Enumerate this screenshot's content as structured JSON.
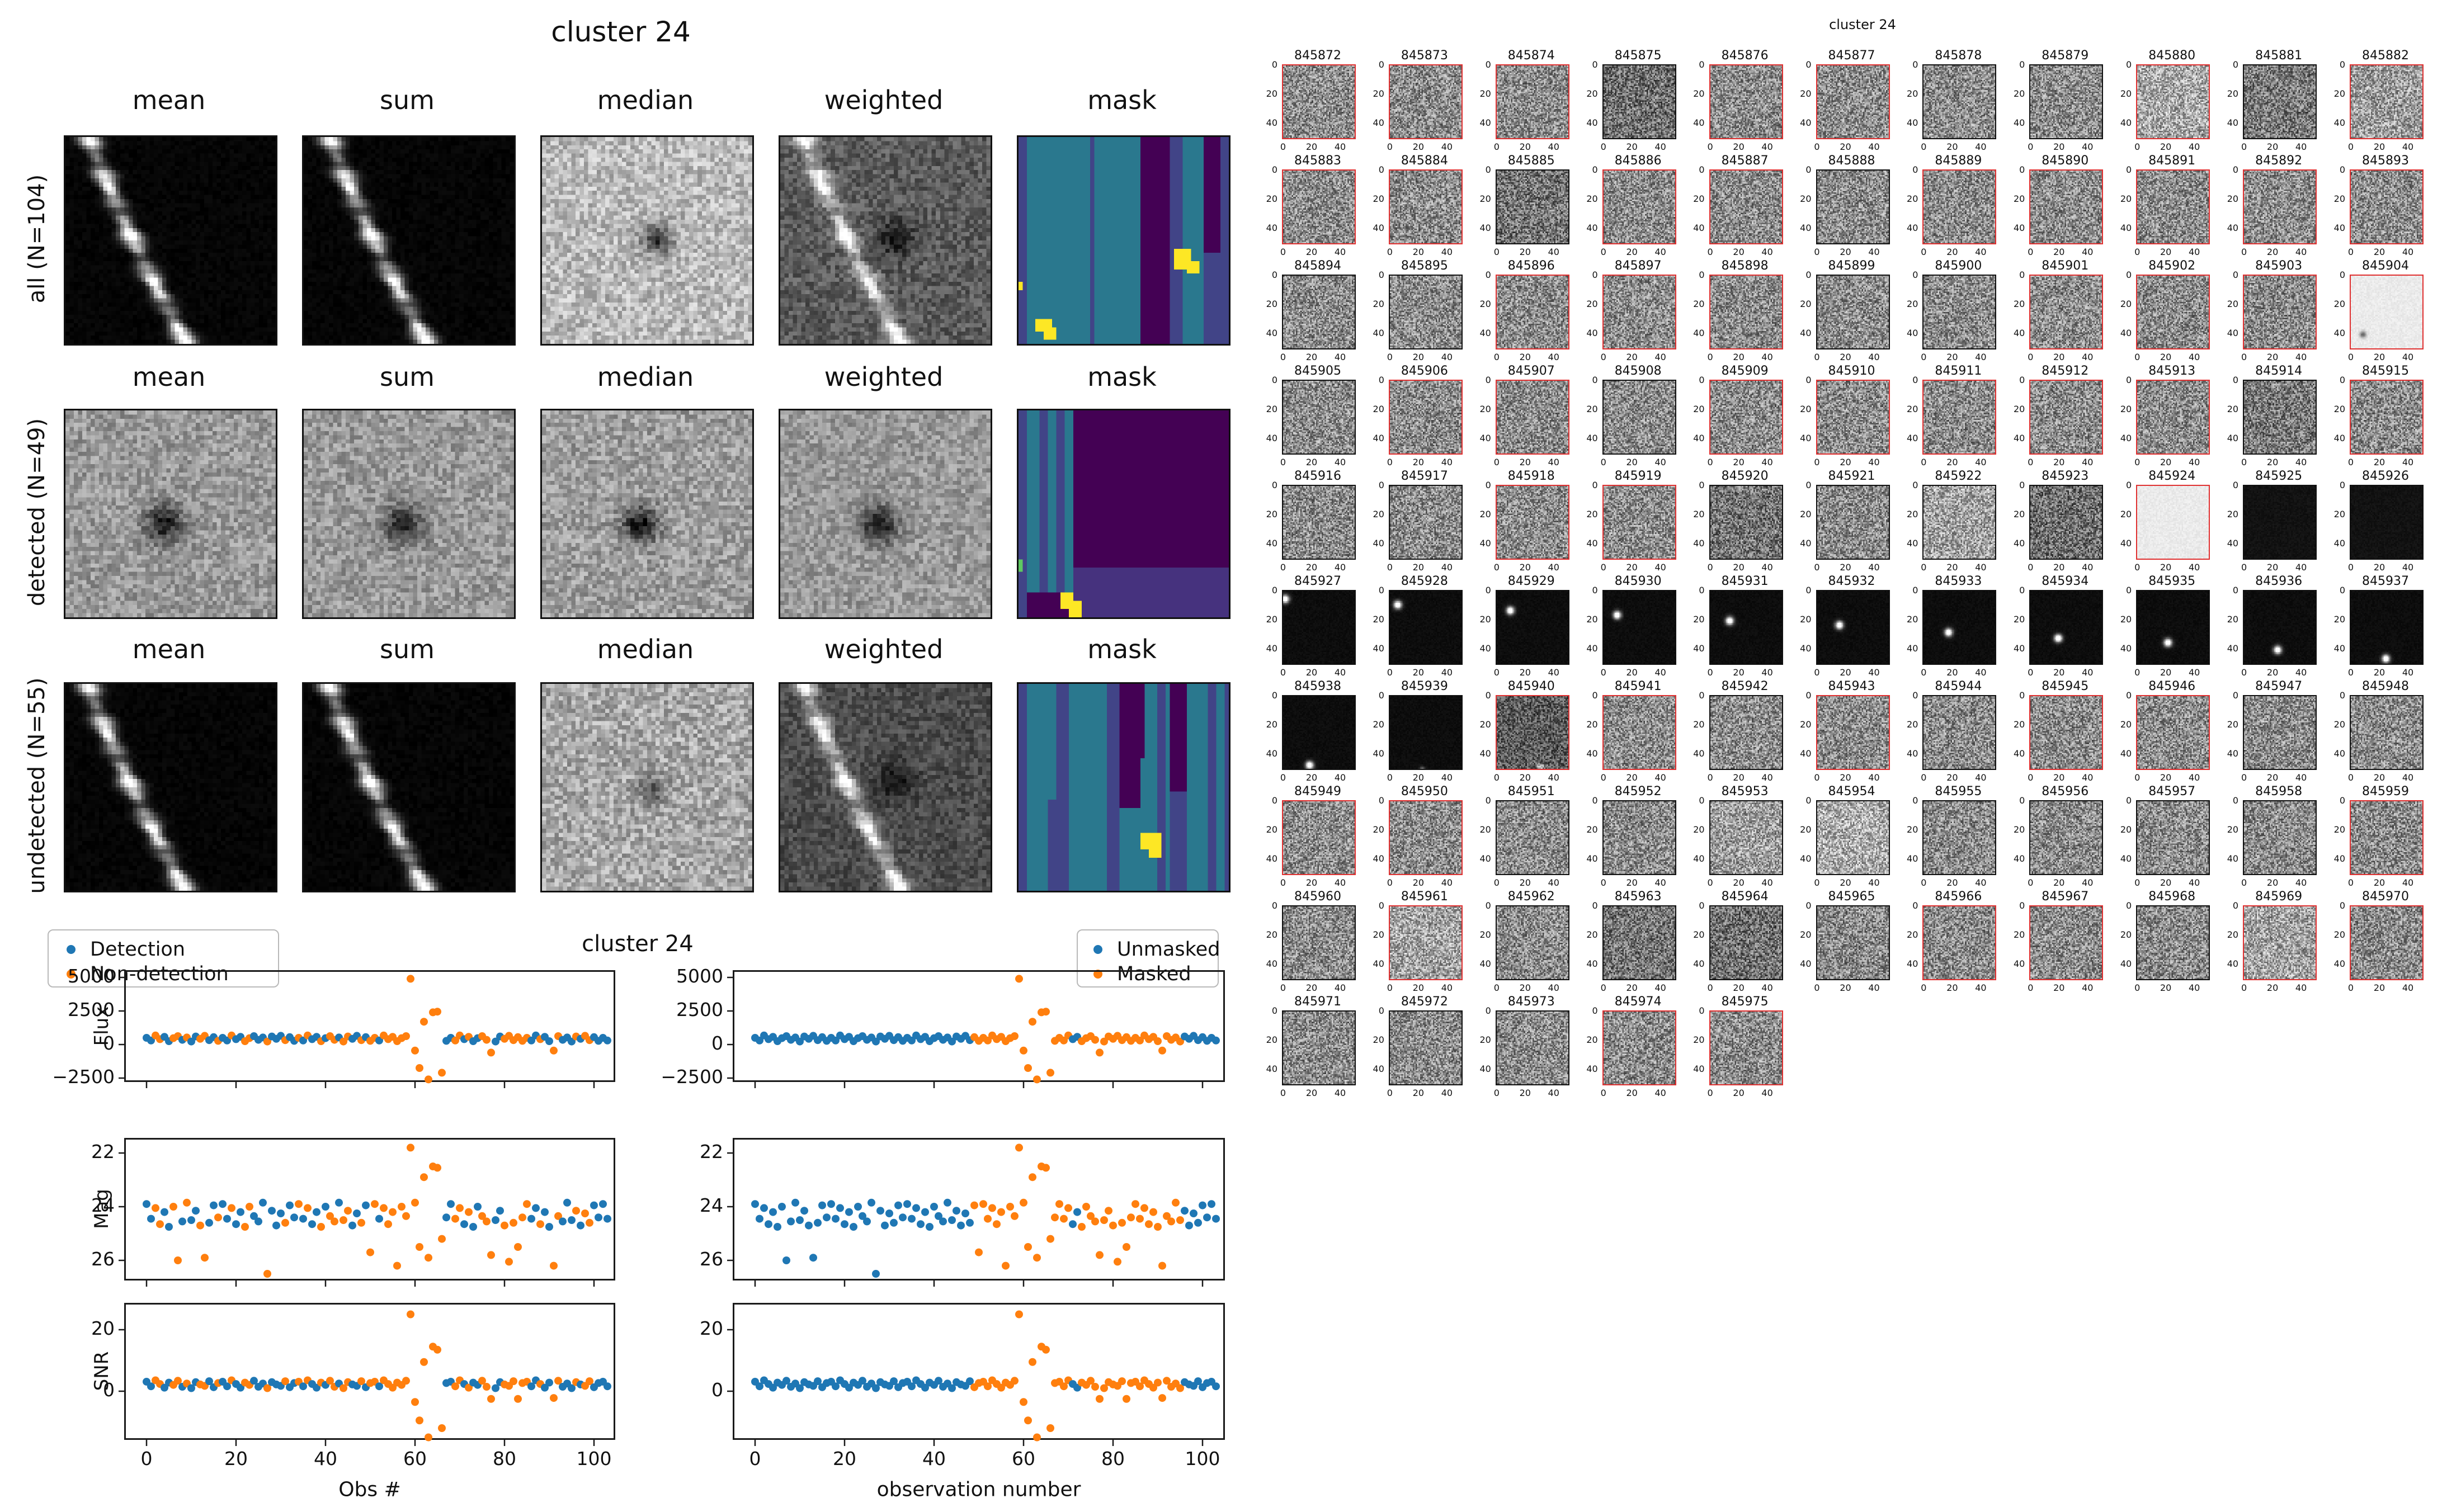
{
  "colors": {
    "point_blue": "#1f77b4",
    "point_orange": "#ff7f0e",
    "red_border": "#e03131",
    "black_border": "#111111",
    "viridis_teal": "#2a788e",
    "viridis_blue": "#414487",
    "viridis_dark_purple": "#440154",
    "viridis_light_purple": "#46327e",
    "viridis_green": "#5ec962",
    "viridis_yellow": "#fde725"
  },
  "left_figure": {
    "title": "cluster 24",
    "col_headers": [
      "mean",
      "sum",
      "median",
      "weighted",
      "mask"
    ],
    "rows": [
      {
        "label": "all (N=104)",
        "panels": [
          "streak_all_mean",
          "streak_all_sum",
          "median_all",
          "weighted_all",
          "mask_all"
        ]
      },
      {
        "label": "detected (N=49)",
        "panels": [
          "det_mean",
          "det_sum",
          "det_median",
          "det_weighted",
          "mask_detected"
        ]
      },
      {
        "label": "undetected (N=55)",
        "panels": [
          "streak_und_mean",
          "streak_und_sum",
          "und_median",
          "und_weighted",
          "mask_undetected"
        ]
      }
    ]
  },
  "scatter_figure": {
    "title": "cluster 24",
    "legend_left": {
      "items": [
        {
          "label": "Detection",
          "color": "point_blue"
        },
        {
          "label": "Non-detection",
          "color": "point_orange"
        }
      ]
    },
    "legend_right": {
      "items": [
        {
          "label": "Unmasked",
          "color": "point_blue"
        },
        {
          "label": "Masked",
          "color": "point_orange"
        }
      ]
    },
    "ylabels": [
      "Flux",
      "Mag",
      "SNR"
    ],
    "xlabel_left": "Obs #",
    "xlabel_right": "observation number",
    "yticks": {
      "flux": {
        "values": [
          5000,
          2500,
          0,
          -2500
        ],
        "labels": [
          "5000",
          "2500",
          "0",
          "−2500"
        ]
      },
      "mag": {
        "values": [
          22,
          24,
          26
        ],
        "labels": [
          "22",
          "24",
          "26"
        ]
      },
      "snr": {
        "values": [
          20,
          0
        ],
        "labels": [
          "20",
          "0"
        ]
      }
    },
    "xticks": {
      "values": [
        0,
        20,
        40,
        60,
        80,
        100
      ],
      "labels": [
        "0",
        "20",
        "40",
        "60",
        "80",
        "100"
      ]
    }
  },
  "chart_data": {
    "type": "scatter",
    "title": "cluster 24",
    "xlabel": "observation number",
    "x_range": [
      -5,
      109
    ],
    "panels": [
      {
        "ylabel": "Flux",
        "ylim": [
          -3300,
          5600
        ],
        "yticks": [
          5000,
          2500,
          0,
          -2500
        ]
      },
      {
        "ylabel": "Mag",
        "ylim": [
          26.75,
          21.44
        ],
        "inverted": true,
        "yticks": [
          22,
          24,
          26
        ]
      },
      {
        "ylabel": "SNR",
        "ylim": [
          -16,
          28.5
        ],
        "yticks": [
          20,
          0
        ]
      }
    ],
    "series_coloring": {
      "left_column": "detected (Detection=blue / Non-detection=orange)",
      "right_column": "masked (Unmasked=blue / Masked=orange)"
    },
    "obs_count": 104,
    "flux": [
      500,
      300,
      675,
      400,
      575,
      250,
      475,
      625,
      350,
      525,
      225,
      600,
      425,
      650,
      325,
      550,
      275,
      500,
      300,
      675,
      400,
      575,
      250,
      475,
      625,
      350,
      525,
      225,
      600,
      425,
      650,
      325,
      550,
      275,
      500,
      300,
      675,
      400,
      575,
      250,
      475,
      625,
      350,
      525,
      225,
      600,
      425,
      650,
      325,
      550,
      275,
      500,
      300,
      675,
      400,
      575,
      250,
      475,
      625,
      4900,
      -450,
      -1750,
      1700,
      -2600,
      2400,
      2450,
      -2100,
      275,
      500,
      300,
      675,
      400,
      575,
      250,
      475,
      625,
      350,
      -600,
      225,
      600,
      425,
      650,
      325,
      550,
      275,
      500,
      300,
      675,
      400,
      575,
      250,
      -450,
      625,
      350,
      525,
      225,
      600,
      425,
      650,
      325,
      550,
      275,
      500,
      300
    ],
    "mag": [
      23.9,
      24.45,
      24.05,
      24.65,
      24.2,
      24.75,
      24.0,
      26.0,
      24.55,
      23.85,
      24.5,
      24.15,
      24.7,
      25.9,
      24.6,
      23.95,
      24.4,
      23.9,
      24.45,
      24.05,
      24.65,
      24.2,
      24.75,
      24.0,
      24.35,
      24.55,
      23.85,
      26.5,
      24.15,
      24.7,
      24.25,
      24.6,
      23.95,
      24.4,
      23.9,
      24.45,
      24.05,
      24.65,
      24.2,
      24.75,
      24.0,
      24.35,
      24.55,
      23.85,
      24.5,
      24.15,
      24.7,
      24.25,
      24.6,
      23.95,
      25.7,
      23.9,
      24.45,
      24.05,
      24.65,
      24.2,
      26.2,
      24.0,
      24.35,
      21.8,
      23.85,
      25.5,
      22.9,
      25.9,
      22.5,
      22.55,
      25.2,
      24.4,
      23.9,
      24.45,
      24.05,
      24.65,
      24.2,
      24.75,
      24.0,
      24.35,
      24.55,
      25.8,
      24.5,
      24.15,
      24.7,
      26.05,
      24.6,
      25.5,
      24.4,
      23.9,
      24.45,
      24.05,
      24.65,
      24.2,
      24.75,
      26.2,
      24.35,
      24.55,
      23.85,
      24.5,
      24.15,
      24.7,
      24.25,
      24.6,
      23.95,
      24.4,
      23.9,
      24.45
    ],
    "snr": [
      3.1,
      1.6,
      3.55,
      2.35,
      1.15,
      2.8,
      2.05,
      3.4,
      1.45,
      2.5,
      1.0,
      2.95,
      2.2,
      1.75,
      3.25,
      1.3,
      2.65,
      3.1,
      1.6,
      3.55,
      2.35,
      1.15,
      2.8,
      2.05,
      3.4,
      1.45,
      2.5,
      1.0,
      2.95,
      2.2,
      1.75,
      3.25,
      1.3,
      2.65,
      3.1,
      1.6,
      3.55,
      2.35,
      1.15,
      2.8,
      2.05,
      3.4,
      1.45,
      2.5,
      1.0,
      2.95,
      2.2,
      1.75,
      3.25,
      1.3,
      2.65,
      3.1,
      1.6,
      3.55,
      2.35,
      1.15,
      2.8,
      2.05,
      3.4,
      25,
      -3.5,
      -9.5,
      9.5,
      -15,
      14.5,
      13.5,
      -12,
      2.65,
      3.1,
      1.6,
      3.55,
      2.35,
      1.15,
      2.8,
      2.05,
      3.4,
      1.45,
      -2.5,
      1.0,
      2.95,
      2.2,
      1.75,
      3.25,
      -2.5,
      2.65,
      3.1,
      1.6,
      3.55,
      2.35,
      1.15,
      2.8,
      -2.2,
      3.4,
      1.45,
      2.5,
      1.0,
      2.95,
      2.2,
      1.75,
      3.25,
      1.3,
      2.65,
      3.1,
      1.6
    ],
    "detected": [
      1,
      1,
      0,
      0,
      1,
      1,
      0,
      0,
      1,
      0,
      1,
      1,
      0,
      0,
      1,
      1,
      0,
      1,
      1,
      0,
      1,
      1,
      0,
      0,
      1,
      1,
      1,
      0,
      1,
      1,
      1,
      0,
      1,
      1,
      0,
      1,
      0,
      1,
      1,
      0,
      1,
      0,
      0,
      1,
      0,
      0,
      1,
      1,
      0,
      1,
      0,
      0,
      1,
      0,
      0,
      0,
      0,
      0,
      0,
      0,
      0,
      0,
      0,
      0,
      0,
      0,
      0,
      1,
      1,
      0,
      0,
      1,
      0,
      1,
      1,
      0,
      0,
      0,
      1,
      1,
      0,
      0,
      0,
      0,
      0,
      0,
      1,
      1,
      0,
      1,
      1,
      0,
      0,
      1,
      1,
      1,
      0,
      1,
      0,
      0,
      1,
      1,
      1,
      1
    ],
    "masked": [
      0,
      0,
      0,
      0,
      0,
      0,
      0,
      0,
      0,
      0,
      0,
      0,
      0,
      0,
      0,
      0,
      0,
      0,
      0,
      0,
      0,
      0,
      0,
      0,
      0,
      0,
      0,
      0,
      0,
      0,
      0,
      0,
      0,
      0,
      0,
      0,
      0,
      0,
      0,
      0,
      0,
      0,
      0,
      0,
      0,
      0,
      0,
      0,
      0,
      1,
      1,
      1,
      1,
      1,
      1,
      1,
      1,
      1,
      1,
      1,
      1,
      1,
      1,
      1,
      1,
      1,
      1,
      1,
      1,
      1,
      1,
      0,
      0,
      1,
      1,
      1,
      1,
      1,
      1,
      1,
      1,
      1,
      1,
      1,
      1,
      1,
      1,
      1,
      1,
      1,
      1,
      1,
      1,
      1,
      1,
      1,
      0,
      0,
      0,
      0,
      0,
      0,
      0,
      0
    ]
  },
  "cutouts_figure": {
    "title": "cluster 24",
    "axis_ticks": {
      "x": [
        "0",
        "20",
        "40"
      ],
      "y": [
        "0",
        "20",
        "40"
      ]
    },
    "thumbnails": [
      {
        "id": 845872,
        "red": 1
      },
      {
        "id": 845873,
        "red": 1
      },
      {
        "id": 845874,
        "red": 1
      },
      {
        "id": 845875,
        "b": 0.44
      },
      {
        "id": 845876,
        "red": 1
      },
      {
        "id": 845877,
        "red": 1
      },
      {
        "id": 845878
      },
      {
        "id": 845879
      },
      {
        "id": 845880,
        "red": 1,
        "b": 0.66
      },
      {
        "id": 845881,
        "b": 0.48
      },
      {
        "id": 845882,
        "red": 1,
        "b": 0.62
      },
      {
        "id": 845883,
        "red": 1
      },
      {
        "id": 845884,
        "red": 1
      },
      {
        "id": 845885,
        "b": 0.46
      },
      {
        "id": 845886,
        "red": 1
      },
      {
        "id": 845887,
        "red": 1
      },
      {
        "id": 845888
      },
      {
        "id": 845889,
        "red": 1
      },
      {
        "id": 845890,
        "red": 1
      },
      {
        "id": 845891,
        "red": 1
      },
      {
        "id": 845892,
        "red": 1
      },
      {
        "id": 845893,
        "red": 1
      },
      {
        "id": 845894
      },
      {
        "id": 845895
      },
      {
        "id": 845896,
        "red": 1
      },
      {
        "id": 845897,
        "red": 1
      },
      {
        "id": 845898,
        "red": 1
      },
      {
        "id": 845899
      },
      {
        "id": 845900
      },
      {
        "id": 845901,
        "red": 1
      },
      {
        "id": 845902,
        "red": 1
      },
      {
        "id": 845903,
        "red": 1
      },
      {
        "id": 845904,
        "red": 1,
        "light": 1,
        "dot": [
          8,
          40
        ]
      },
      {
        "id": 845905
      },
      {
        "id": 845906,
        "red": 1
      },
      {
        "id": 845907,
        "red": 1
      },
      {
        "id": 845908
      },
      {
        "id": 845909,
        "red": 1
      },
      {
        "id": 845910,
        "red": 1
      },
      {
        "id": 845911,
        "red": 1
      },
      {
        "id": 845912,
        "red": 1
      },
      {
        "id": 845913,
        "red": 1
      },
      {
        "id": 845914,
        "b": 0.48
      },
      {
        "id": 845915,
        "red": 1
      },
      {
        "id": 845916
      },
      {
        "id": 845917
      },
      {
        "id": 845918,
        "red": 1
      },
      {
        "id": 845919,
        "red": 1
      },
      {
        "id": 845920,
        "b": 0.46
      },
      {
        "id": 845921
      },
      {
        "id": 845922,
        "b": 0.64
      },
      {
        "id": 845923,
        "b": 0.44
      },
      {
        "id": 845924,
        "red": 1,
        "light": 1
      },
      {
        "id": 845925,
        "black": 1
      },
      {
        "id": 845926,
        "black": 1
      },
      {
        "id": 845927,
        "star": [
          1,
          5
        ]
      },
      {
        "id": 845928,
        "star": [
          5,
          9
        ]
      },
      {
        "id": 845929,
        "star": [
          9,
          13
        ]
      },
      {
        "id": 845930,
        "star": [
          9,
          16
        ]
      },
      {
        "id": 845931,
        "star": [
          13,
          20
        ]
      },
      {
        "id": 845932,
        "star": [
          15,
          23
        ]
      },
      {
        "id": 845933,
        "star": [
          17,
          28
        ]
      },
      {
        "id": 845934,
        "star": [
          19,
          32
        ]
      },
      {
        "id": 845935,
        "star": [
          21,
          35
        ]
      },
      {
        "id": 845936,
        "star": [
          23,
          40
        ]
      },
      {
        "id": 845937,
        "star": [
          24,
          46
        ]
      },
      {
        "id": 845938,
        "star": [
          18,
          47
        ]
      },
      {
        "id": 845939,
        "star": [
          22,
          50
        ],
        "faint": 1
      },
      {
        "id": 845940,
        "red": 1,
        "b": 0.36,
        "star": [
          30,
          48
        ],
        "faint": 1
      },
      {
        "id": 845941,
        "red": 1
      },
      {
        "id": 845942
      },
      {
        "id": 845943,
        "red": 1
      },
      {
        "id": 845944
      },
      {
        "id": 845945,
        "red": 1
      },
      {
        "id": 845946,
        "red": 1
      },
      {
        "id": 845947
      },
      {
        "id": 845948
      },
      {
        "id": 845949,
        "red": 1
      },
      {
        "id": 845950,
        "red": 1
      },
      {
        "id": 845951
      },
      {
        "id": 845952
      },
      {
        "id": 845953,
        "b": 0.62
      },
      {
        "id": 845954,
        "b": 0.68
      },
      {
        "id": 845955
      },
      {
        "id": 845956
      },
      {
        "id": 845957
      },
      {
        "id": 845958
      },
      {
        "id": 845959,
        "red": 1
      },
      {
        "id": 845960
      },
      {
        "id": 845961,
        "red": 1,
        "b": 0.64
      },
      {
        "id": 845962
      },
      {
        "id": 845963,
        "b": 0.46
      },
      {
        "id": 845964,
        "b": 0.44
      },
      {
        "id": 845965
      },
      {
        "id": 845966,
        "red": 1
      },
      {
        "id": 845967,
        "red": 1
      },
      {
        "id": 845968
      },
      {
        "id": 845969,
        "red": 1,
        "b": 0.64
      },
      {
        "id": 845970,
        "red": 1
      },
      {
        "id": 845971
      },
      {
        "id": 845972
      },
      {
        "id": 845973
      },
      {
        "id": 845974,
        "red": 1
      },
      {
        "id": 845975,
        "red": 1
      }
    ]
  }
}
